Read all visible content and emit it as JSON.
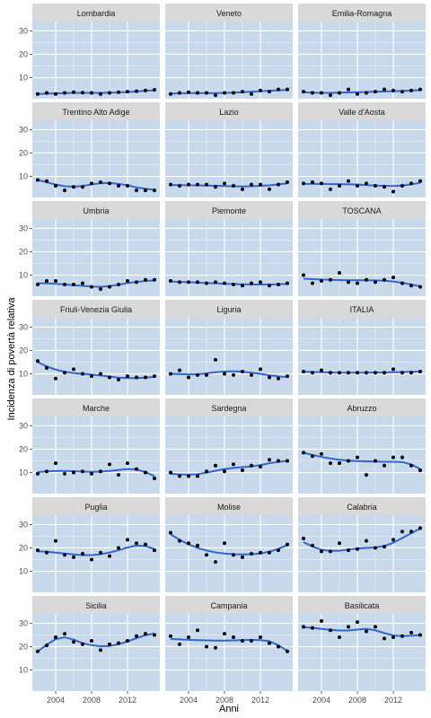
{
  "chart_data": {
    "type": "scatter",
    "xlabel": "Anni",
    "ylabel": "Incidenza di povertà relativa",
    "title": "",
    "smooth": true,
    "x": [
      2002,
      2003,
      2004,
      2005,
      2006,
      2007,
      2008,
      2009,
      2010,
      2011,
      2012,
      2013,
      2014,
      2015
    ],
    "x_ticks": [
      2004,
      2008,
      2012
    ],
    "xlim": [
      2001.4,
      2015.6
    ],
    "y_ticks": [
      10,
      20,
      30
    ],
    "ylim": [
      1,
      34
    ],
    "grid": true,
    "colors": {
      "panel": "#c8d9ec",
      "grid": "#ffffff",
      "strip": "#d9d9d9",
      "points": "#000000",
      "smooth": "#3366cc"
    },
    "panels": [
      {
        "name": "Lombardia",
        "values": [
          3.0,
          3.5,
          3.0,
          3.5,
          3.8,
          3.6,
          3.5,
          3.0,
          3.5,
          3.8,
          4.0,
          4.2,
          4.5,
          4.8
        ],
        "smooth": [
          3.0,
          3.2,
          3.3,
          3.4,
          3.5,
          3.5,
          3.5,
          3.5,
          3.6,
          3.7,
          3.9,
          4.1,
          4.4,
          4.6
        ]
      },
      {
        "name": "Veneto",
        "values": [
          3.0,
          3.5,
          3.8,
          3.5,
          3.5,
          2.5,
          3.5,
          3.5,
          4.0,
          3.0,
          4.5,
          4.0,
          5.0,
          5.0
        ],
        "smooth": [
          3.2,
          3.3,
          3.4,
          3.4,
          3.4,
          3.4,
          3.5,
          3.6,
          3.8,
          4.0,
          4.2,
          4.4,
          4.6,
          4.8
        ]
      },
      {
        "name": "Emilia-Romagna",
        "values": [
          4.0,
          3.5,
          3.5,
          2.5,
          3.5,
          5.0,
          3.0,
          3.5,
          4.0,
          5.0,
          4.5,
          4.0,
          4.5,
          5.0
        ],
        "smooth": [
          3.8,
          3.6,
          3.5,
          3.5,
          3.6,
          3.7,
          3.8,
          3.9,
          4.0,
          4.1,
          4.2,
          4.3,
          4.5,
          4.7
        ]
      },
      {
        "name": "Trentino Alto Adige",
        "values": [
          8.5,
          8.0,
          6.0,
          4.0,
          5.5,
          5.5,
          7.0,
          7.5,
          7.0,
          6.0,
          6.0,
          4.0,
          4.0,
          4.0
        ],
        "smooth": [
          8.5,
          7.5,
          6.5,
          5.8,
          5.6,
          5.9,
          6.6,
          7.1,
          7.2,
          6.8,
          6.2,
          5.3,
          4.7,
          4.3
        ]
      },
      {
        "name": "Lazio",
        "values": [
          6.5,
          6.0,
          6.5,
          6.5,
          6.5,
          5.5,
          7.0,
          6.0,
          4.5,
          6.5,
          6.5,
          4.5,
          6.5,
          7.5
        ],
        "smooth": [
          6.3,
          6.3,
          6.2,
          6.2,
          6.1,
          6.0,
          5.9,
          5.8,
          5.7,
          5.8,
          6.0,
          6.2,
          6.6,
          7.0
        ]
      },
      {
        "name": "Valle d'Aosta",
        "values": [
          7.0,
          7.5,
          7.0,
          4.5,
          6.0,
          8.0,
          6.0,
          7.0,
          6.0,
          5.5,
          3.5,
          6.0,
          7.0,
          8.0
        ],
        "smooth": [
          6.8,
          6.8,
          6.8,
          6.7,
          6.7,
          6.6,
          6.5,
          6.3,
          6.1,
          6.0,
          5.9,
          6.1,
          6.6,
          7.3
        ]
      },
      {
        "name": "Umbria",
        "values": [
          6.0,
          7.5,
          7.5,
          6.0,
          6.0,
          6.5,
          5.0,
          4.0,
          5.0,
          6.0,
          7.5,
          7.0,
          8.0,
          8.0
        ],
        "smooth": [
          6.5,
          6.5,
          6.3,
          6.0,
          5.7,
          5.4,
          5.1,
          5.0,
          5.3,
          5.9,
          6.6,
          7.1,
          7.5,
          7.7
        ]
      },
      {
        "name": "Piemonte",
        "values": [
          7.5,
          7.0,
          7.0,
          7.0,
          6.5,
          7.0,
          6.5,
          6.0,
          5.5,
          6.5,
          7.0,
          5.5,
          6.0,
          6.5
        ],
        "smooth": [
          7.3,
          7.1,
          7.0,
          6.8,
          6.6,
          6.5,
          6.3,
          6.2,
          6.1,
          6.0,
          6.0,
          6.0,
          6.1,
          6.3
        ]
      },
      {
        "name": "TOSCANA",
        "values": [
          10.0,
          6.5,
          7.5,
          8.0,
          11.0,
          7.0,
          6.5,
          8.0,
          7.0,
          8.0,
          9.0,
          6.5,
          5.5,
          5.0
        ],
        "smooth": [
          8.5,
          8.3,
          8.1,
          8.0,
          7.9,
          7.8,
          7.8,
          7.8,
          7.7,
          7.6,
          7.3,
          6.7,
          6.0,
          5.2
        ]
      },
      {
        "name": "Friuli-Venezia Giulia",
        "values": [
          15.5,
          12.5,
          8.0,
          10.5,
          12.0,
          10.0,
          9.0,
          10.0,
          8.5,
          7.5,
          9.0,
          8.5,
          8.5,
          9.0
        ],
        "smooth": [
          15.0,
          13.2,
          11.8,
          10.9,
          10.3,
          10.0,
          9.7,
          9.3,
          8.8,
          8.4,
          8.2,
          8.2,
          8.4,
          8.7
        ]
      },
      {
        "name": "Liguria",
        "values": [
          10.0,
          11.5,
          8.5,
          9.5,
          9.5,
          16.0,
          10.0,
          9.5,
          11.0,
          9.5,
          12.0,
          8.5,
          8.0,
          9.0
        ],
        "smooth": [
          10.0,
          9.9,
          9.8,
          9.8,
          10.2,
          10.7,
          11.0,
          11.1,
          10.9,
          10.5,
          10.0,
          9.4,
          8.9,
          8.6
        ]
      },
      {
        "name": "ITALIA",
        "values": [
          11.0,
          10.5,
          11.5,
          10.5,
          10.5,
          10.5,
          10.5,
          10.5,
          10.5,
          10.5,
          12.0,
          10.5,
          10.5,
          11.0
        ],
        "smooth": [
          10.9,
          10.8,
          10.7,
          10.6,
          10.5,
          10.5,
          10.5,
          10.5,
          10.6,
          10.6,
          10.7,
          10.8,
          10.9,
          11.0
        ]
      },
      {
        "name": "Marche",
        "values": [
          9.5,
          10.5,
          14.0,
          9.5,
          10.0,
          10.5,
          9.5,
          10.5,
          13.5,
          9.0,
          14.0,
          11.5,
          10.0,
          7.5
        ],
        "smooth": [
          10.2,
          10.5,
          10.7,
          10.7,
          10.6,
          10.4,
          10.3,
          10.4,
          10.7,
          11.1,
          11.5,
          11.3,
          10.2,
          8.5
        ]
      },
      {
        "name": "Sardegna",
        "values": [
          10.0,
          8.5,
          8.5,
          8.5,
          10.5,
          13.0,
          10.5,
          13.5,
          11.0,
          13.0,
          12.5,
          15.5,
          15.0,
          15.0
        ],
        "smooth": [
          9.5,
          9.2,
          9.1,
          9.3,
          10.0,
          10.8,
          11.5,
          12.0,
          12.3,
          12.6,
          13.2,
          14.0,
          14.6,
          15.0
        ]
      },
      {
        "name": "Abruzzo",
        "values": [
          18.5,
          17.0,
          18.0,
          14.0,
          14.0,
          15.0,
          16.5,
          9.0,
          15.0,
          13.0,
          16.5,
          16.5,
          13.0,
          11.0
        ],
        "smooth": [
          18.5,
          17.5,
          16.7,
          16.0,
          15.5,
          15.1,
          14.9,
          14.8,
          14.7,
          14.6,
          14.6,
          14.5,
          13.5,
          11.5
        ]
      },
      {
        "name": "Puglia",
        "values": [
          19.0,
          18.0,
          23.0,
          17.0,
          16.0,
          17.5,
          15.0,
          18.0,
          16.5,
          20.0,
          23.5,
          22.0,
          21.5,
          19.0
        ],
        "smooth": [
          18.5,
          18.4,
          18.0,
          17.6,
          17.2,
          16.9,
          16.9,
          17.3,
          18.0,
          19.0,
          20.2,
          21.0,
          20.8,
          19.5
        ]
      },
      {
        "name": "Molise",
        "values": [
          26.5,
          23.0,
          22.0,
          21.0,
          17.0,
          14.0,
          22.0,
          17.0,
          16.0,
          17.5,
          18.0,
          18.0,
          19.0,
          21.5
        ],
        "smooth": [
          25.8,
          23.5,
          21.5,
          20.0,
          18.9,
          18.1,
          17.6,
          17.3,
          17.2,
          17.3,
          17.6,
          18.4,
          19.6,
          21.2
        ]
      },
      {
        "name": "Calabria",
        "values": [
          24.0,
          21.0,
          18.5,
          18.5,
          22.0,
          19.0,
          19.5,
          23.0,
          20.0,
          20.5,
          23.5,
          27.0,
          27.0,
          28.5
        ],
        "smooth": [
          22.5,
          20.6,
          19.2,
          18.7,
          18.8,
          19.3,
          19.7,
          20.0,
          20.2,
          20.8,
          22.2,
          24.2,
          26.3,
          28.3
        ]
      },
      {
        "name": "Sicilia",
        "values": [
          18.0,
          20.5,
          24.0,
          25.5,
          22.0,
          21.0,
          22.5,
          18.5,
          21.0,
          21.5,
          22.5,
          24.5,
          25.5,
          25.0
        ],
        "smooth": [
          18.0,
          20.8,
          23.2,
          24.0,
          23.0,
          21.5,
          20.6,
          20.2,
          20.3,
          21.0,
          22.2,
          23.6,
          24.9,
          25.6
        ]
      },
      {
        "name": "Campania",
        "values": [
          24.5,
          21.0,
          24.0,
          27.0,
          20.0,
          19.5,
          25.5,
          24.0,
          22.5,
          22.5,
          24.0,
          21.5,
          20.0,
          18.0
        ],
        "smooth": [
          23.3,
          23.1,
          22.9,
          22.8,
          22.7,
          22.6,
          22.6,
          22.7,
          22.8,
          22.9,
          22.8,
          22.3,
          20.6,
          18.2
        ]
      },
      {
        "name": "Basilicata",
        "values": [
          28.5,
          28.0,
          31.0,
          27.0,
          24.0,
          28.5,
          30.5,
          26.5,
          28.5,
          23.5,
          24.0,
          24.5,
          26.0,
          25.0
        ],
        "smooth": [
          28.3,
          28.0,
          27.6,
          27.2,
          26.9,
          26.9,
          27.3,
          27.6,
          27.0,
          25.8,
          24.8,
          24.5,
          24.7,
          25.0
        ]
      }
    ]
  }
}
